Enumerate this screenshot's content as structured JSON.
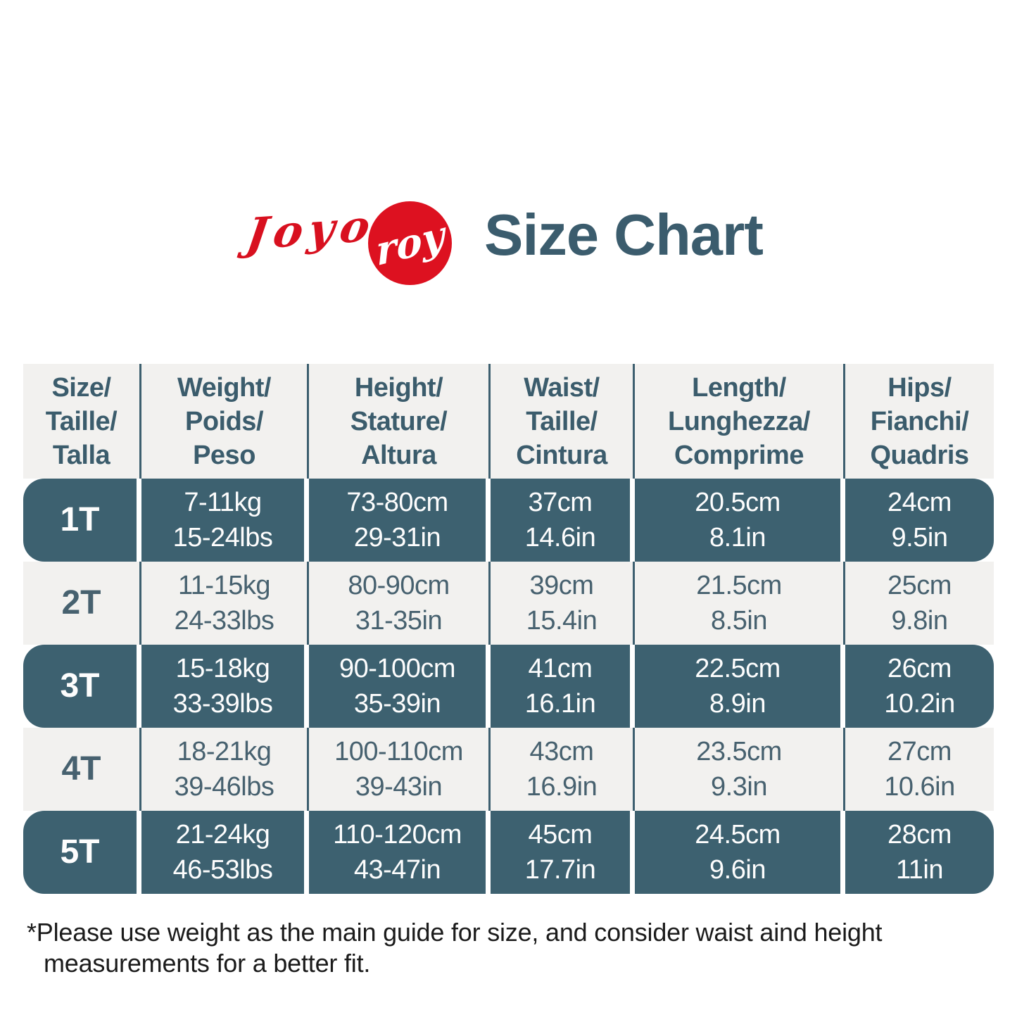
{
  "brand": {
    "script_text": "Joyo",
    "circle_text": "roy"
  },
  "title": "Size Chart",
  "colors": {
    "dark_row_bg": "#3d6170",
    "light_row_bg": "#f2f1ef",
    "brand_red": "#dd1120",
    "title_text": "#3b5c6d",
    "note_text": "#1b1b1b"
  },
  "chart_data": {
    "type": "table",
    "title": "Size Chart",
    "columns": [
      {
        "lines": [
          "Size/",
          "Taille/",
          "Talla"
        ]
      },
      {
        "lines": [
          "Weight/",
          "Poids/",
          "Peso"
        ]
      },
      {
        "lines": [
          "Height/",
          "Stature/",
          "Altura"
        ]
      },
      {
        "lines": [
          "Waist/",
          "Taille/",
          "Cintura"
        ]
      },
      {
        "lines": [
          "Length/",
          "Lunghezza/",
          "Comprime"
        ]
      },
      {
        "lines": [
          "Hips/",
          "Fianchi/",
          "Quadris"
        ]
      }
    ],
    "rows": [
      {
        "size": "1T",
        "shade": "dark",
        "cells": [
          [
            "7-11kg",
            "15-24lbs"
          ],
          [
            "73-80cm",
            "29-31in"
          ],
          [
            "37cm",
            "14.6in"
          ],
          [
            "20.5cm",
            "8.1in"
          ],
          [
            "24cm",
            "9.5in"
          ]
        ]
      },
      {
        "size": "2T",
        "shade": "light",
        "cells": [
          [
            "11-15kg",
            "24-33lbs"
          ],
          [
            "80-90cm",
            "31-35in"
          ],
          [
            "39cm",
            "15.4in"
          ],
          [
            "21.5cm",
            "8.5in"
          ],
          [
            "25cm",
            "9.8in"
          ]
        ]
      },
      {
        "size": "3T",
        "shade": "dark",
        "cells": [
          [
            "15-18kg",
            "33-39lbs"
          ],
          [
            "90-100cm",
            "35-39in"
          ],
          [
            "41cm",
            "16.1in"
          ],
          [
            "22.5cm",
            "8.9in"
          ],
          [
            "26cm",
            "10.2in"
          ]
        ]
      },
      {
        "size": "4T",
        "shade": "light",
        "cells": [
          [
            "18-21kg",
            "39-46lbs"
          ],
          [
            "100-110cm",
            "39-43in"
          ],
          [
            "43cm",
            "16.9in"
          ],
          [
            "23.5cm",
            "9.3in"
          ],
          [
            "27cm",
            "10.6in"
          ]
        ]
      },
      {
        "size": "5T",
        "shade": "dark",
        "cells": [
          [
            "21-24kg",
            "46-53lbs"
          ],
          [
            "110-120cm",
            "43-47in"
          ],
          [
            "45cm",
            "17.7in"
          ],
          [
            "24.5cm",
            "9.6in"
          ],
          [
            "28cm",
            "11in"
          ]
        ]
      }
    ]
  },
  "note": {
    "line1": "*Please use weight as the main guide for size, and consider waist aind height",
    "line2": "measurements for a better fit."
  }
}
